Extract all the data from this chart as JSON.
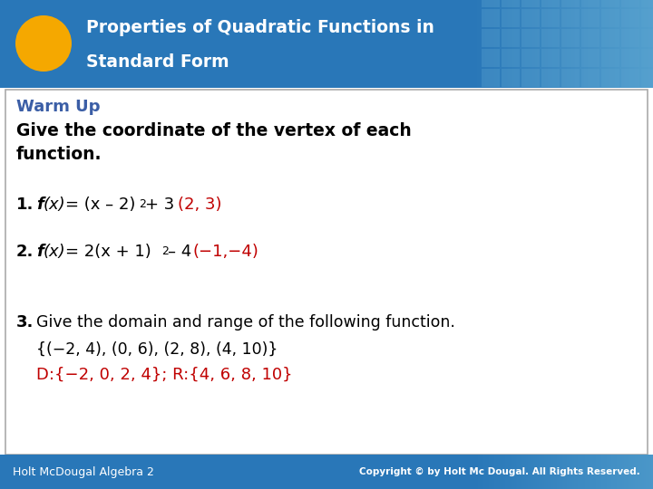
{
  "title_line1": "Properties of Quadratic Functions in",
  "title_line2": "Standard Form",
  "header_bg_color": "#2977B8",
  "header_bg_color2": "#5BA3D0",
  "header_text_color": "#FFFFFF",
  "oval_color": "#F5A800",
  "warm_up_label": "Warm Up",
  "warm_up_color": "#3B5EA6",
  "intro_text_line1": "Give the coordinate of the vertex of each",
  "intro_text_line2": "function.",
  "intro_color": "#000000",
  "q1_answer": "(2, 3)",
  "q1_answer_color": "#C00000",
  "q2_answer": "(−1,−4)",
  "q2_answer_color": "#C00000",
  "q3_text": "Give the domain and range of the following function.",
  "q3_set": "{(−2, 4), (0, 6), (2, 8), (4, 10)}",
  "q3_answer": "D:{−2, 0, 2, 4}; R:{4, 6, 8, 10}",
  "q3_answer_color": "#C00000",
  "footer_left": "Holt McDougal Algebra 2",
  "footer_right": "Copyright © by Holt Mc Dougal. All Rights Reserved.",
  "footer_bg_color": "#2977B8",
  "footer_text_color": "#FFFFFF"
}
